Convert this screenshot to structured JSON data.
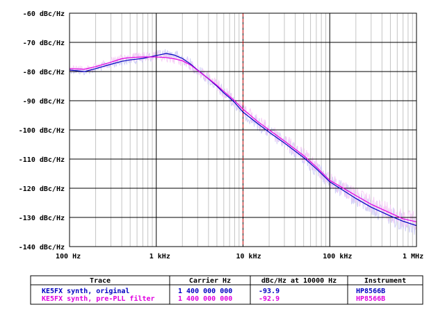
{
  "chart_data": {
    "type": "line",
    "x_scale": "log",
    "xlim": [
      100,
      1000000
    ],
    "ylim": [
      -140,
      -60
    ],
    "y_ticks": [
      {
        "value": -60,
        "label": "-60 dBc/Hz"
      },
      {
        "value": -70,
        "label": "-70 dBc/Hz"
      },
      {
        "value": -80,
        "label": "-80 dBc/Hz"
      },
      {
        "value": -90,
        "label": "-90 dBc/Hz"
      },
      {
        "value": -100,
        "label": "-100 dBc/Hz"
      },
      {
        "value": -110,
        "label": "-110 dBc/Hz"
      },
      {
        "value": -120,
        "label": "-120 dBc/Hz"
      },
      {
        "value": -130,
        "label": "-130 dBc/Hz"
      },
      {
        "value": -140,
        "label": "-140 dBc/Hz"
      }
    ],
    "x_ticks": [
      {
        "value": 100,
        "label": "100 Hz"
      },
      {
        "value": 1000,
        "label": "1 kHz"
      },
      {
        "value": 10000,
        "label": "10 kHz"
      },
      {
        "value": 100000,
        "label": "100 kHz"
      },
      {
        "value": 1000000,
        "label": "1 MHz"
      }
    ],
    "marker_x": 10000,
    "grid": true,
    "series": [
      {
        "name": "KE5FX synth, original",
        "color": "#0000c0",
        "raw_color": "#c8c8f4",
        "x": [
          100,
          150,
          200,
          300,
          400,
          500,
          700,
          1000,
          1300,
          1600,
          2000,
          2500,
          3000,
          4000,
          5000,
          6000,
          7000,
          8000,
          10000,
          15000,
          20000,
          30000,
          50000,
          70000,
          100000,
          200000,
          300000,
          500000,
          700000,
          1000000
        ],
        "values": [
          -79.5,
          -80.0,
          -79.0,
          -77.5,
          -76.5,
          -76.0,
          -75.5,
          -74.5,
          -73.8,
          -74.3,
          -75.5,
          -77.5,
          -79.5,
          -82.5,
          -85.0,
          -87.3,
          -89.0,
          -90.6,
          -93.9,
          -98.0,
          -100.8,
          -104.5,
          -109.5,
          -113.3,
          -117.8,
          -123.5,
          -126.5,
          -129.5,
          -131.3,
          -132.8
        ]
      },
      {
        "name": "KE5FX synth, pre-PLL filter",
        "color": "#e000e0",
        "raw_color": "#f4c8f4",
        "x": [
          100,
          150,
          200,
          300,
          400,
          500,
          700,
          1000,
          1300,
          1600,
          2000,
          2500,
          3000,
          4000,
          5000,
          6000,
          7000,
          8000,
          10000,
          15000,
          20000,
          30000,
          50000,
          70000,
          100000,
          200000,
          300000,
          500000,
          700000,
          1000000
        ],
        "values": [
          -79.0,
          -79.2,
          -78.3,
          -76.8,
          -75.6,
          -75.2,
          -75.0,
          -75.0,
          -75.2,
          -75.6,
          -76.3,
          -77.8,
          -79.6,
          -82.4,
          -84.7,
          -86.8,
          -88.5,
          -90.0,
          -92.9,
          -97.3,
          -100.0,
          -103.8,
          -108.8,
          -112.7,
          -117.3,
          -122.5,
          -125.5,
          -128.5,
          -130.5,
          -131.5
        ]
      }
    ]
  },
  "legend_table": {
    "headers": [
      "Trace",
      "Carrier Hz",
      "dBc/Hz at 10000 Hz",
      "Instrument"
    ],
    "rows": [
      {
        "trace": "KE5FX synth, original",
        "carrier": "1 400 000 000",
        "level": "-93.9",
        "instrument": "HP8566B",
        "color": "#0000c0"
      },
      {
        "trace": "KE5FX synth, pre-PLL filter",
        "carrier": "1 400 000 000",
        "level": "-92.9",
        "instrument": "HP8566B",
        "color": "#e000e0"
      }
    ]
  }
}
